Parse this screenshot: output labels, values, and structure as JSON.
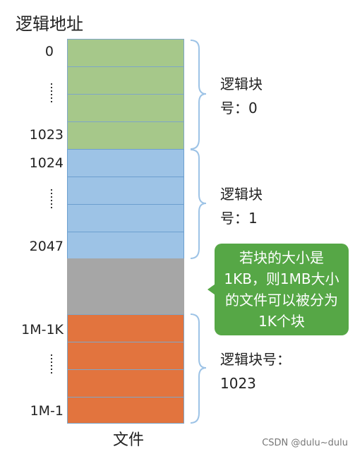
{
  "title": "逻辑地址",
  "addresses": {
    "a0": "0",
    "a1023": "1023",
    "a1024": "1024",
    "a2047": "2047",
    "am1k": "1M-1K",
    "am1": "1M-1"
  },
  "groups": [
    {
      "line1": "逻辑块",
      "line2": "号：0",
      "color": "#a6c88a"
    },
    {
      "line1": "逻辑块",
      "line2": "号：1",
      "color": "#9dc3e6"
    },
    {
      "line1": "逻辑块号：",
      "line2": "1023",
      "color": "#e2743e"
    }
  ],
  "gap_color": "#a6a6a6",
  "callout": "若块的大小是1KB，则1MB大小的文件可以被分为1K个块",
  "caption": "文件",
  "watermark": "CSDN @dulu~dulu"
}
